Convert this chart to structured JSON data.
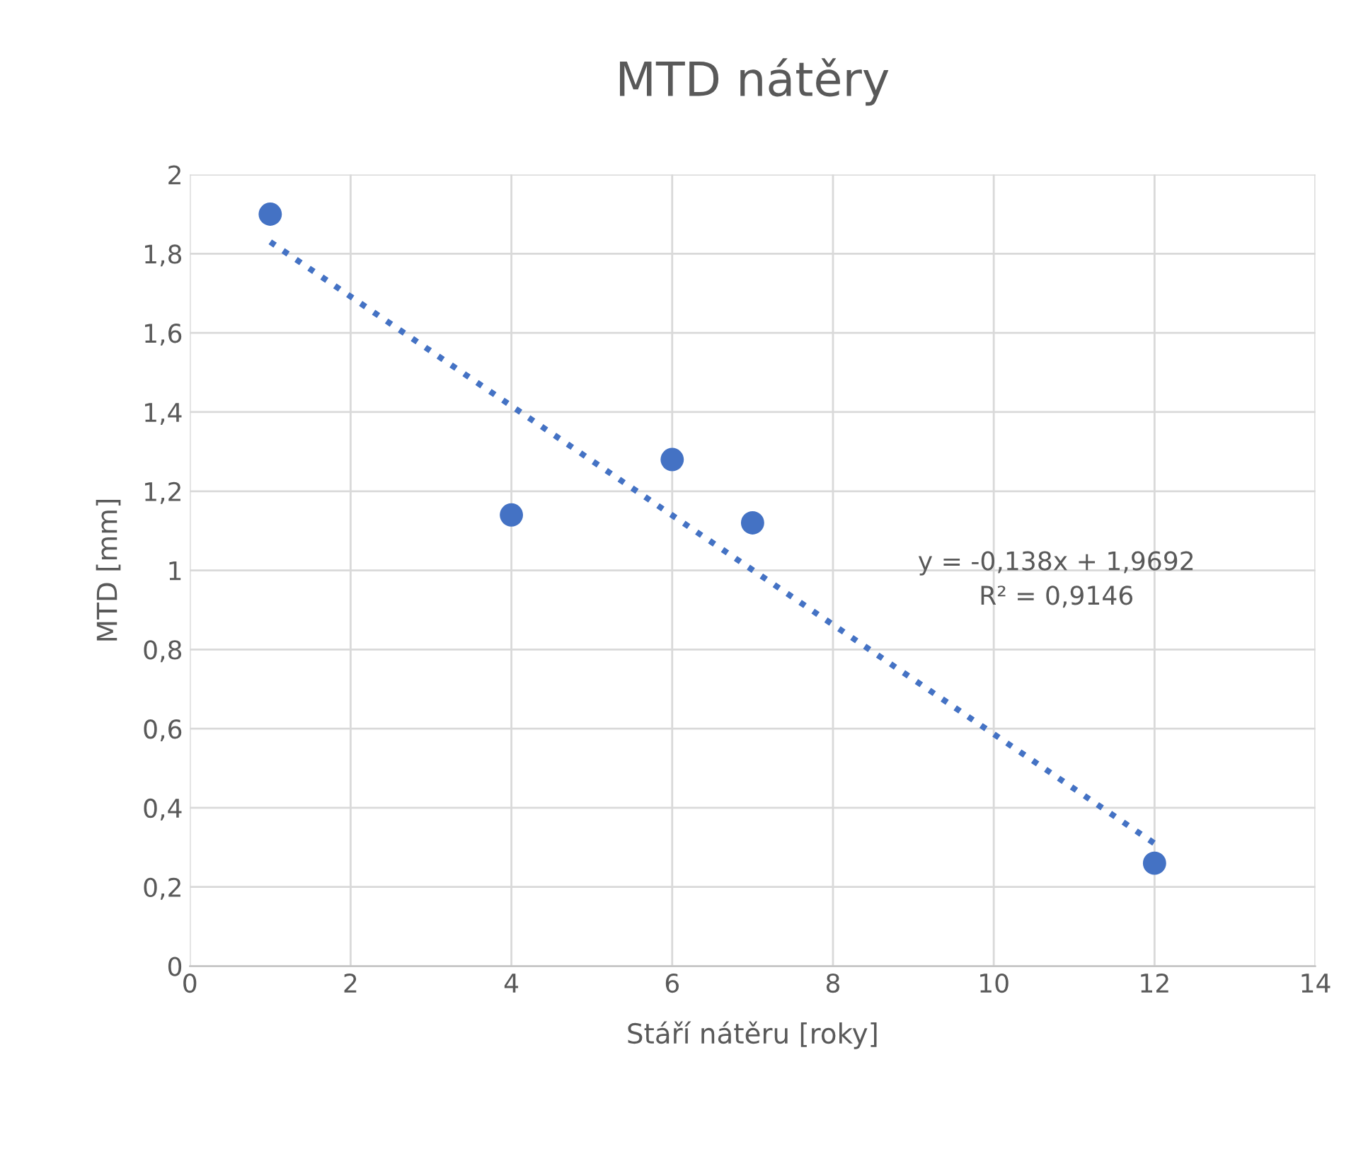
{
  "chart_data": {
    "type": "scatter",
    "title": "MTD nátěry",
    "xlabel": "Stáří nátěru [roky]",
    "ylabel": "MTD [mm]",
    "x": [
      1,
      4,
      6,
      7,
      12
    ],
    "series": [
      {
        "color": "#4472c4",
        "values": [
          1.9,
          1.14,
          1.28,
          1.12,
          0.26
        ],
        "marker": "circle"
      },
      {
        "type": "line",
        "color": "#4472c4",
        "x": [
          1,
          12
        ],
        "values": [
          1.83,
          0.31
        ],
        "line_style": "dotted",
        "marker": "none"
      }
    ],
    "annotations": [
      "y = -0,138x + 1,9692",
      "R² = 0,9146"
    ],
    "xlim": [
      0,
      14
    ],
    "xticks": [
      0,
      2,
      4,
      6,
      8,
      10,
      12,
      14
    ],
    "ylim": [
      0,
      2
    ],
    "yticks": [
      0,
      {
        "value": 0.2,
        "label": "0,2"
      },
      {
        "value": 0.4,
        "label": "0,4"
      },
      {
        "value": 0.6,
        "label": "0,6"
      },
      {
        "value": 0.8,
        "label": "0,8"
      },
      1,
      {
        "value": 1.2,
        "label": "1,2"
      },
      {
        "value": 1.4,
        "label": "1,4"
      },
      {
        "value": 1.6,
        "label": "1,6"
      },
      {
        "value": 1.8,
        "label": "1,8"
      },
      2
    ],
    "grid": true
  }
}
